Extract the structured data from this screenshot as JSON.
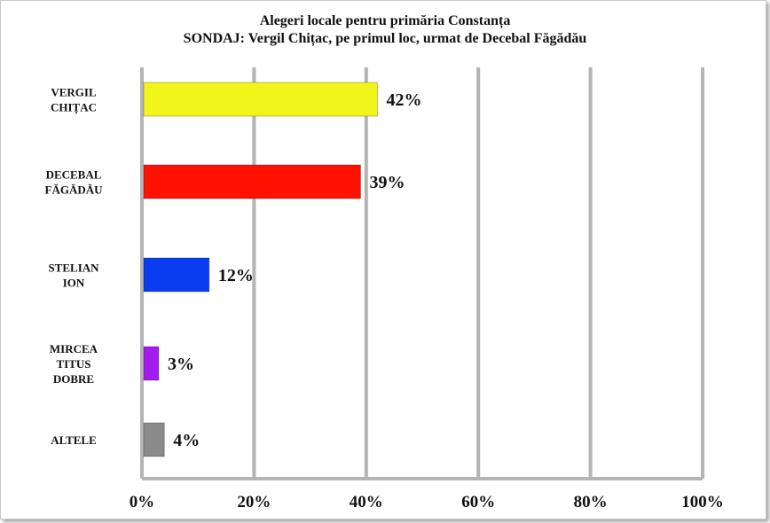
{
  "chart_data": {
    "type": "bar",
    "orientation": "horizontal",
    "title": "Alegeri locale pentru primăria Constanța",
    "subtitle": "SONDAJ: Vergil Chițac, pe primul loc, urmat de Decebal Făgădău",
    "categories": [
      [
        "VERGIL",
        "CHIȚAC"
      ],
      [
        "DECEBAL",
        "FĂGĂDĂU"
      ],
      [
        "STELIAN",
        "ION"
      ],
      [
        "MIRCEA",
        "TITUS",
        "DOBRE"
      ],
      [
        "ALTELE"
      ]
    ],
    "values": [
      42,
      39,
      12,
      3,
      4
    ],
    "value_labels": [
      "42%",
      "39%",
      "12%",
      "3%",
      "4%"
    ],
    "colors": [
      "#f2f51a",
      "#ff1100",
      "#0a3cf0",
      "#a21cf0",
      "#8a8a8a"
    ],
    "xlim": [
      0,
      100
    ],
    "x_ticks": [
      0,
      20,
      40,
      60,
      80,
      100
    ],
    "x_tick_labels": [
      "0%",
      "20%",
      "40%",
      "60%",
      "80%",
      "100%"
    ],
    "grid": "vertical",
    "grid_color": "#b4b4b4",
    "xlabel": "",
    "ylabel": ""
  }
}
